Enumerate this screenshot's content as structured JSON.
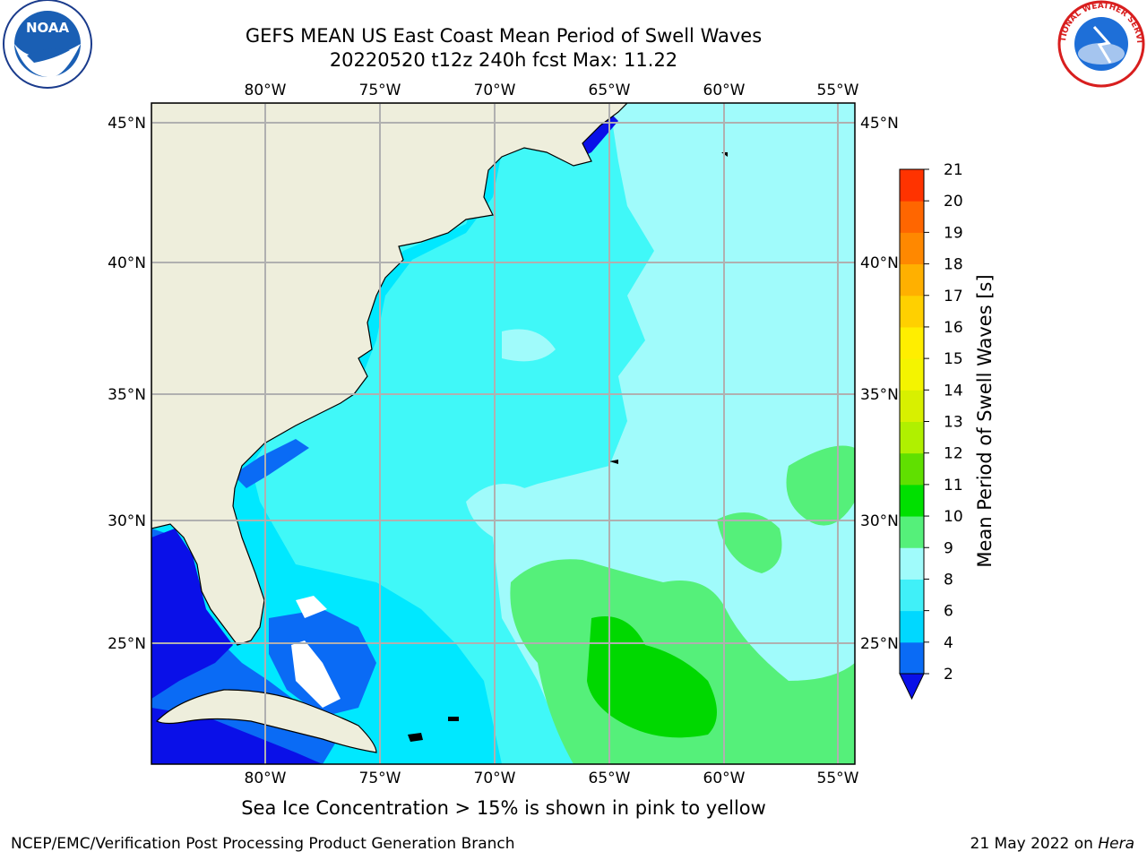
{
  "title": {
    "line1": "GEFS MEAN US East Coast Mean Period of Swell Waves",
    "line2": "20220520 t12z 240h fcst   Max: 11.22"
  },
  "logos": {
    "left": {
      "icon": "noaa-logo",
      "text": "NOAA"
    },
    "right": {
      "icon": "nws-logo",
      "text": "NATIONAL WEATHER SERVICE"
    }
  },
  "map": {
    "longitude_labels": [
      "80°W",
      "75°W",
      "70°W",
      "65°W",
      "60°W",
      "55°W"
    ],
    "latitude_labels": [
      "45°N",
      "40°N",
      "35°N",
      "30°N",
      "25°N"
    ],
    "colors": {
      "land": "#eeeedc",
      "grid": "#b0b0b0",
      "coast": "#000000"
    }
  },
  "colorbar": {
    "label": "Mean Period of Swell Waves [s]",
    "ticks": [
      "2",
      "4",
      "6",
      "8",
      "9",
      "10",
      "11",
      "12",
      "13",
      "14",
      "15",
      "16",
      "17",
      "18",
      "19",
      "20",
      "21"
    ],
    "colors": [
      "#0a6bf5",
      "#00d8ff",
      "#40f0f8",
      "#a0fbfb",
      "#55f07a",
      "#00e000",
      "#60e000",
      "#b0f000",
      "#d8f000",
      "#f4f400",
      "#ffee00",
      "#ffd000",
      "#ffb000",
      "#ff8800",
      "#ff6600",
      "#ff3300",
      "#ff0000"
    ],
    "under_color": "#0a10e8"
  },
  "note": "Sea Ice Concentration > 15% is shown in pink to yellow",
  "footer": {
    "left": "NCEP/EMC/Verification Post Processing Product Generation Branch",
    "date": "21 May 2022 on ",
    "host": "Hera"
  }
}
